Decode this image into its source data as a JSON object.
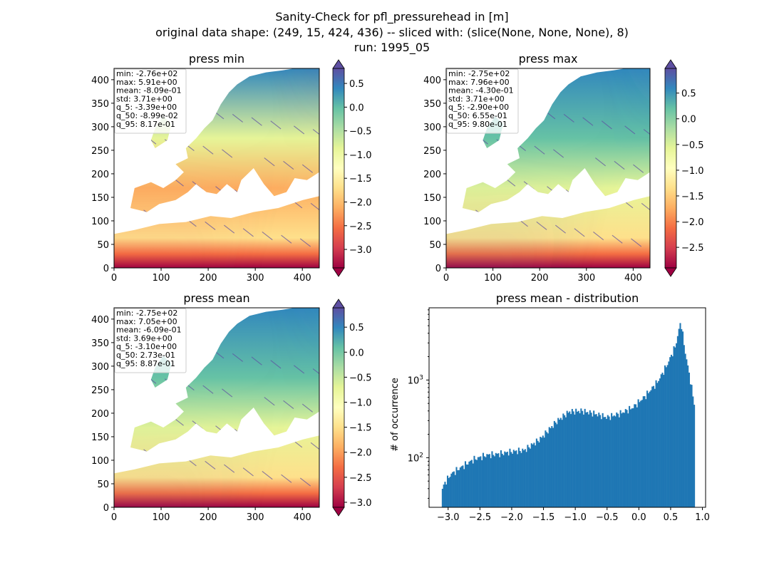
{
  "figure": {
    "title_lines": [
      "Sanity-Check for pfl_pressurehead in [m]",
      "original data shape: (249, 15, 424, 436) -- sliced with: (slice(None, None, None), 8)",
      "run: 1995_05"
    ]
  },
  "colormap": {
    "name": "Spectral",
    "stops": [
      "#9e0142",
      "#d53e4f",
      "#f46d43",
      "#fdae61",
      "#fee08b",
      "#ffffbf",
      "#e6f598",
      "#abdda4",
      "#66c2a5",
      "#3288bd",
      "#5e4fa2"
    ]
  },
  "chart_data": [
    {
      "type": "heatmap",
      "title": "press min",
      "xlim": [
        0,
        436
      ],
      "ylim": [
        0,
        424
      ],
      "xticks": [
        0,
        100,
        200,
        300,
        400
      ],
      "yticks": [
        0,
        50,
        100,
        150,
        200,
        250,
        300,
        350,
        400
      ],
      "colorbar": {
        "range": [
          -3.39,
          0.817
        ],
        "ticks": [
          0.5,
          0.0,
          -0.5,
          -1.0,
          -1.5,
          -2.0,
          -2.5,
          -3.0
        ],
        "tick_labels": [
          "0.5",
          "0.0",
          "−0.5",
          "−1.0",
          "−1.5",
          "−2.0",
          "−2.5",
          "−3.0"
        ],
        "extend": "both"
      },
      "stats": [
        "min: -2.76e+02",
        "max: 5.91e+00",
        "mean: -8.09e-01",
        "std: 3.71e+00",
        "q_5: -3.39e+00",
        "q_50: -8.99e-02",
        "q_95: 8.17e-01"
      ]
    },
    {
      "type": "heatmap",
      "title": "press max",
      "xlim": [
        0,
        436
      ],
      "ylim": [
        0,
        424
      ],
      "xticks": [
        0,
        100,
        200,
        300,
        400
      ],
      "yticks": [
        0,
        50,
        100,
        150,
        200,
        250,
        300,
        350,
        400
      ],
      "colorbar": {
        "range": [
          -2.9,
          0.98
        ],
        "ticks": [
          0.5,
          0.0,
          -0.5,
          -1.0,
          -1.5,
          -2.0,
          -2.5
        ],
        "tick_labels": [
          "0.5",
          "0.0",
          "−0.5",
          "−1.0",
          "−1.5",
          "−2.0",
          "−2.5"
        ],
        "extend": "both"
      },
      "stats": [
        "min: -2.75e+02",
        "max: 7.96e+00",
        "mean: -4.30e-01",
        "std: 3.71e+00",
        "q_5: -2.90e+00",
        "q_50: 6.55e-01",
        "q_95: 9.80e-01"
      ]
    },
    {
      "type": "heatmap",
      "title": "press mean",
      "xlim": [
        0,
        436
      ],
      "ylim": [
        0,
        424
      ],
      "xticks": [
        0,
        100,
        200,
        300,
        400
      ],
      "yticks": [
        0,
        50,
        100,
        150,
        200,
        250,
        300,
        350,
        400
      ],
      "colorbar": {
        "range": [
          -3.1,
          0.887
        ],
        "ticks": [
          0.5,
          0.0,
          -0.5,
          -1.0,
          -1.5,
          -2.0,
          -2.5,
          -3.0
        ],
        "tick_labels": [
          "0.5",
          "0.0",
          "−0.5",
          "−1.0",
          "−1.5",
          "−2.0",
          "−2.5",
          "−3.0"
        ],
        "extend": "both"
      },
      "stats": [
        "min: -2.75e+02",
        "max: 7.05e+00",
        "mean: -6.09e-01",
        "std: 3.69e+00",
        "q_5: -3.10e+00",
        "q_50: 2.73e-01",
        "q_95: 8.87e-01"
      ]
    },
    {
      "type": "bar",
      "title": "press mean - distribution",
      "xlabel": "",
      "ylabel": "# of occurrence",
      "color": "#1f77b4",
      "xlim": [
        -3.3,
        1.05
      ],
      "ylim_log": [
        23,
        8500
      ],
      "yscale": "log",
      "xticks": [
        -3.0,
        -2.5,
        -2.0,
        -1.5,
        -1.0,
        -0.5,
        0.0,
        0.5,
        1.0
      ],
      "xtick_labels": [
        "−3.0",
        "−2.5",
        "−2.0",
        "−1.5",
        "−1.0",
        "−0.5",
        "0.0",
        "0.5",
        "1.0"
      ],
      "ytick_labels": [
        {
          "value": 100,
          "base": "10",
          "exp": "2"
        },
        {
          "value": 1000,
          "base": "10",
          "exp": "3"
        }
      ],
      "bin_width": 0.02,
      "profile": [
        {
          "x": -3.1,
          "y": 38
        },
        {
          "x": -3.05,
          "y": 48
        },
        {
          "x": -2.95,
          "y": 62
        },
        {
          "x": -2.8,
          "y": 75
        },
        {
          "x": -2.6,
          "y": 95
        },
        {
          "x": -2.4,
          "y": 108
        },
        {
          "x": -2.2,
          "y": 112
        },
        {
          "x": -2.0,
          "y": 120
        },
        {
          "x": -1.8,
          "y": 125
        },
        {
          "x": -1.55,
          "y": 175
        },
        {
          "x": -1.3,
          "y": 290
        },
        {
          "x": -1.1,
          "y": 390
        },
        {
          "x": -0.9,
          "y": 400
        },
        {
          "x": -0.7,
          "y": 370
        },
        {
          "x": -0.5,
          "y": 330
        },
        {
          "x": -0.3,
          "y": 370
        },
        {
          "x": -0.1,
          "y": 440
        },
        {
          "x": 0.1,
          "y": 620
        },
        {
          "x": 0.3,
          "y": 960
        },
        {
          "x": 0.45,
          "y": 1600
        },
        {
          "x": 0.58,
          "y": 2800
        },
        {
          "x": 0.66,
          "y": 5800
        },
        {
          "x": 0.72,
          "y": 2500
        },
        {
          "x": 0.8,
          "y": 1100
        },
        {
          "x": 0.87,
          "y": 500
        },
        {
          "x": 0.89,
          "y": 340
        }
      ]
    }
  ]
}
